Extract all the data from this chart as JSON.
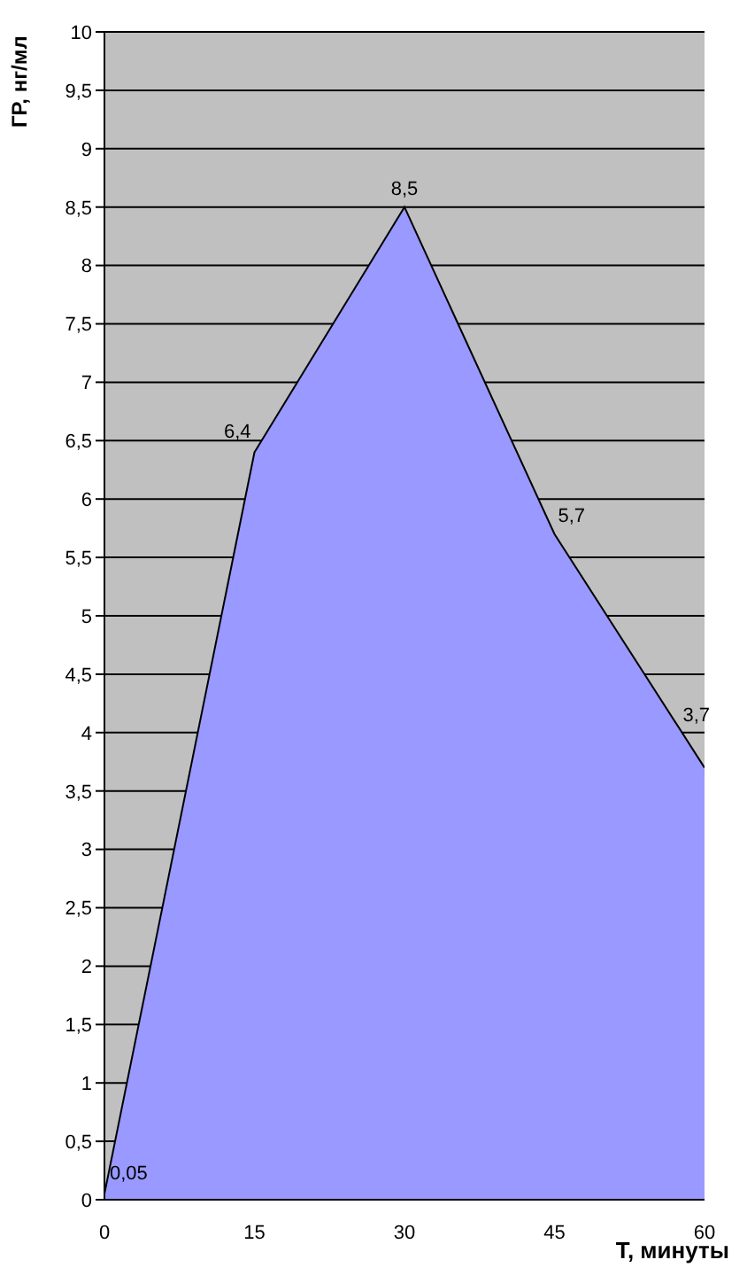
{
  "chart_data": {
    "type": "area",
    "xlabel": "Т, минуты",
    "ylabel": "ГР, нг/мл",
    "x": [
      0,
      15,
      30,
      45,
      60
    ],
    "xlim": [
      0,
      60
    ],
    "xticks": [
      0,
      15,
      30,
      45,
      60
    ],
    "ylim": [
      0,
      10
    ],
    "yticks": [
      0,
      {
        "value": 0.5,
        "label": "0,5"
      },
      1,
      {
        "value": 1.5,
        "label": "1,5"
      },
      2,
      {
        "value": 2.5,
        "label": "2,5"
      },
      3,
      {
        "value": 3.5,
        "label": "3,5"
      },
      4,
      {
        "value": 4.5,
        "label": "4,5"
      },
      5,
      {
        "value": 5.5,
        "label": "5,5"
      },
      6,
      {
        "value": 6.5,
        "label": "6,5"
      },
      7,
      {
        "value": 7.5,
        "label": "7,5"
      },
      8,
      {
        "value": 8.5,
        "label": "8,5"
      },
      9,
      {
        "value": 9.5,
        "label": "9,5"
      },
      10
    ],
    "grid": "y",
    "color": "#9999ff",
    "values": [
      0.05,
      6.4,
      8.5,
      5.7,
      3.7
    ],
    "value_labels": [
      "0,05",
      "6,4",
      "8,5",
      "5,7",
      "3,7"
    ]
  }
}
